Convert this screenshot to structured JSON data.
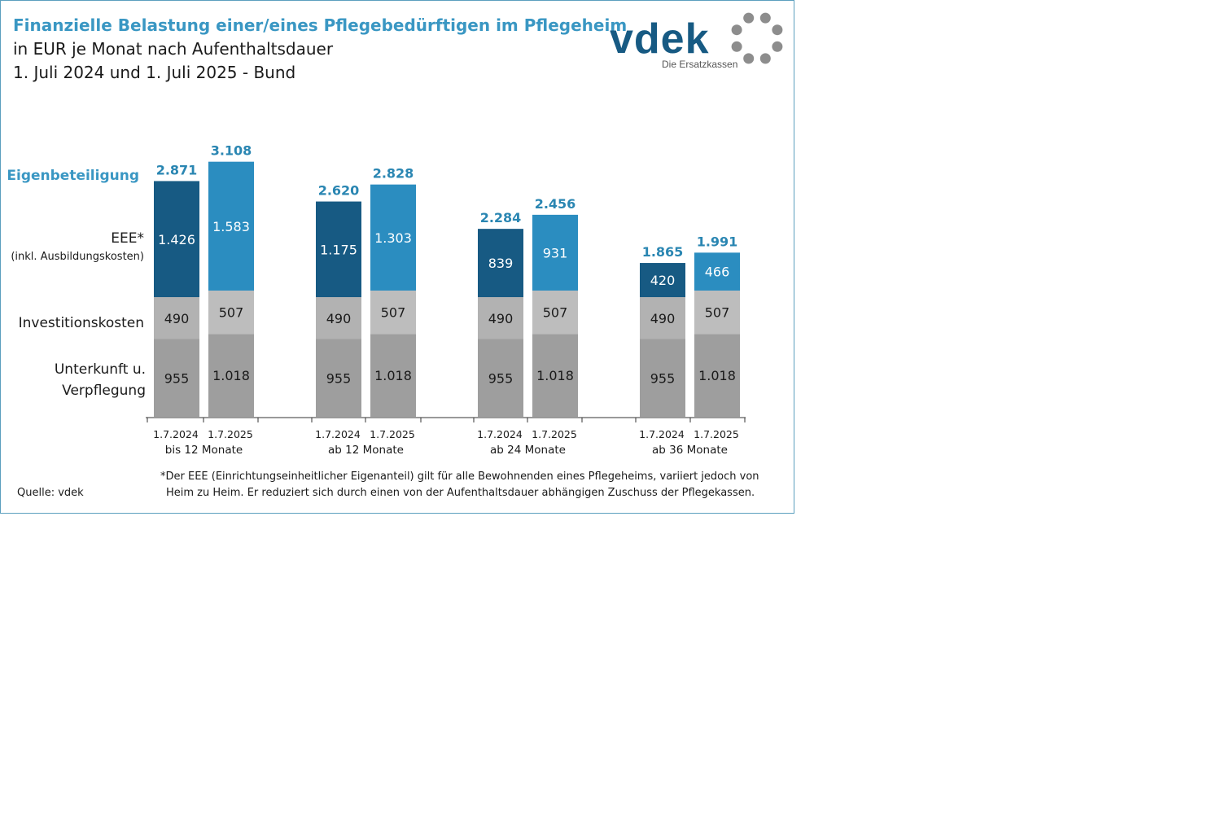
{
  "title": {
    "line1": "Finanzielle Belastung einer/eines Pflegebedürftigen im Pflegeheim",
    "line2": "in EUR je Monat nach Aufenthaltsdauer",
    "line3": "1. Juli 2024 und 1. Juli 2025 - Bund"
  },
  "logo": {
    "brand": "vdek",
    "tagline": "Die Ersatzkassen"
  },
  "colors": {
    "title": "#3a97c3",
    "eee_2024": "#175a83",
    "eee_2025": "#2b8dc0",
    "invest_2024": "#b2b2b2",
    "invest_2025": "#bdbdbd",
    "unterkunft": "#9e9e9e",
    "total_label": "#2a86b2",
    "logo_text": "#175a83",
    "logo_ring": "#8d8d8d"
  },
  "chart_data": {
    "type": "bar",
    "stacked": true,
    "unit": "EUR je Monat",
    "row_labels": {
      "total": "Eigenbeteiligung",
      "eee": "EEE*",
      "eee_note": "(inkl. Ausbildungskosten)",
      "invest": "Investitionskosten",
      "unterkunft_line1": "Unterkunft u.",
      "unterkunft_line2": "Verpflegung"
    },
    "groups": [
      {
        "label": "bis 12 Monate",
        "bars": [
          {
            "date": "1.7.2024",
            "unterkunft": 955,
            "unterkunft_label": "955",
            "invest": 490,
            "invest_label": "490",
            "eee": 1426,
            "eee_label": "1.426",
            "total": 2871,
            "total_label": "2.871"
          },
          {
            "date": "1.7.2025",
            "unterkunft": 1018,
            "unterkunft_label": "1.018",
            "invest": 507,
            "invest_label": "507",
            "eee": 1583,
            "eee_label": "1.583",
            "total": 3108,
            "total_label": "3.108"
          }
        ]
      },
      {
        "label": "ab 12 Monate",
        "bars": [
          {
            "date": "1.7.2024",
            "unterkunft": 955,
            "unterkunft_label": "955",
            "invest": 490,
            "invest_label": "490",
            "eee": 1175,
            "eee_label": "1.175",
            "total": 2620,
            "total_label": "2.620"
          },
          {
            "date": "1.7.2025",
            "unterkunft": 1018,
            "unterkunft_label": "1.018",
            "invest": 507,
            "invest_label": "507",
            "eee": 1303,
            "eee_label": "1.303",
            "total": 2828,
            "total_label": "2.828"
          }
        ]
      },
      {
        "label": "ab 24 Monate",
        "bars": [
          {
            "date": "1.7.2024",
            "unterkunft": 955,
            "unterkunft_label": "955",
            "invest": 490,
            "invest_label": "490",
            "eee": 839,
            "eee_label": "839",
            "total": 2284,
            "total_label": "2.284"
          },
          {
            "date": "1.7.2025",
            "unterkunft": 1018,
            "unterkunft_label": "1.018",
            "invest": 507,
            "invest_label": "507",
            "eee": 931,
            "eee_label": "931",
            "total": 2456,
            "total_label": "2.456"
          }
        ]
      },
      {
        "label": "ab 36 Monate",
        "bars": [
          {
            "date": "1.7.2024",
            "unterkunft": 955,
            "unterkunft_label": "955",
            "invest": 490,
            "invest_label": "490",
            "eee": 420,
            "eee_label": "420",
            "total": 1865,
            "total_label": "1.865"
          },
          {
            "date": "1.7.2025",
            "unterkunft": 1018,
            "unterkunft_label": "1.018",
            "invest": 507,
            "invest_label": "507",
            "eee": 466,
            "eee_label": "466",
            "total": 1991,
            "total_label": "1.991"
          }
        ]
      }
    ]
  },
  "source": "Quelle: vdek",
  "footnote": {
    "line1": "*Der EEE (Einrichtungseinheitlicher Eigenanteil) gilt für alle Bewohnenden eines Pflegeheims, variiert jedoch von",
    "line2": "Heim zu Heim. Er reduziert sich durch einen von der Aufenthaltsdauer abhängigen Zuschuss der Pflegekassen."
  }
}
